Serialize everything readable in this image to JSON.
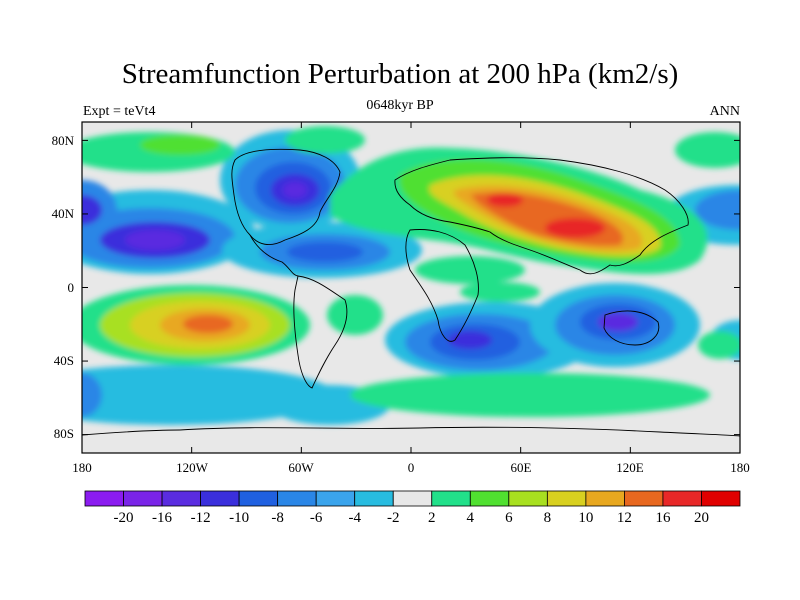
{
  "title": "Streamfunction Perturbation at 200 hPa (km2/s)",
  "left_string": "Expt = teVt4",
  "center_string": "0648kyr BP",
  "right_string": "ANN",
  "lat_labels": [
    "80N",
    "40N",
    "0",
    "40S",
    "80S"
  ],
  "lon_labels": [
    "180",
    "120W",
    "60W",
    "0",
    "60E",
    "120E",
    "180"
  ],
  "colorbar": {
    "labels": [
      "-20",
      "-16",
      "-12",
      "-10",
      "-8",
      "-6",
      "-4",
      "-2",
      "2",
      "4",
      "6",
      "8",
      "10",
      "12",
      "16",
      "20"
    ],
    "colors": [
      "#8b1cf0",
      "#7a24e8",
      "#5a2ce0",
      "#3a2fdc",
      "#2060e0",
      "#2a86e6",
      "#3ba4ec",
      "#28bce0",
      "#e8e8e8",
      "#22e08a",
      "#50e030",
      "#a8e020",
      "#d8d020",
      "#e8a820",
      "#e86820",
      "#e82828",
      "#e00000"
    ]
  },
  "map": {
    "background": "#e8e8e8",
    "projection": "cylindrical-equidistant",
    "lat_range": [
      -90,
      90
    ],
    "lon_range": [
      -180,
      180
    ]
  }
}
